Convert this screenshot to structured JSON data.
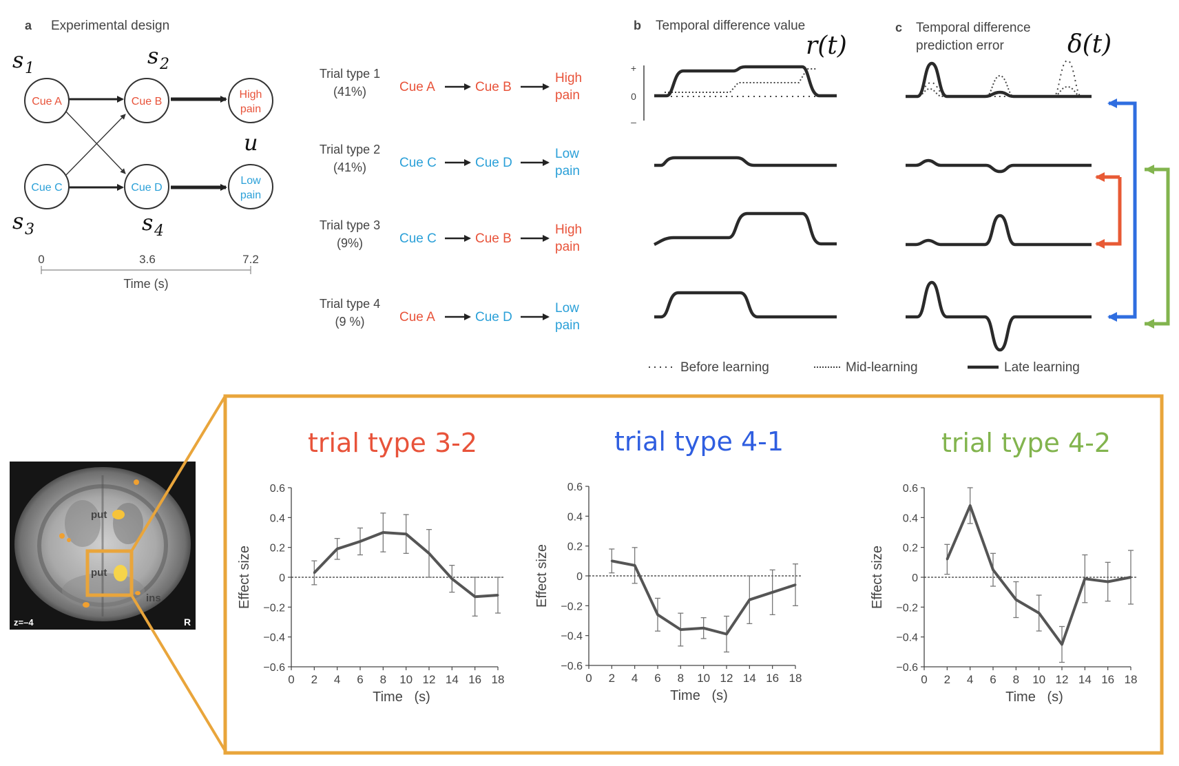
{
  "panel_a": {
    "letter": "a",
    "title": "Experimental design",
    "nodes": [
      {
        "label": "Cue A",
        "color": "#e8533a"
      },
      {
        "label": "Cue B",
        "color": "#e8533a"
      },
      {
        "label_lines": [
          "High",
          "pain"
        ],
        "color": "#e8533a"
      },
      {
        "label": "Cue C",
        "color": "#2ba0d8"
      },
      {
        "label": "Cue D",
        "color": "#2ba0d8"
      },
      {
        "label_lines": [
          "Low",
          "pain"
        ],
        "color": "#2ba0d8"
      }
    ],
    "state_labels": {
      "s1": "s",
      "s1_sub": "1",
      "s2": "s",
      "s2_sub": "2",
      "s3": "s",
      "s3_sub": "3",
      "s4": "s",
      "s4_sub": "4",
      "u": "u"
    },
    "time_axis": {
      "ticks": [
        "0",
        "3.6",
        "7.2"
      ],
      "label": "Time (s)"
    }
  },
  "trial_types": [
    {
      "name": "Trial type 1",
      "pct": "(41%)",
      "cue1": "Cue A",
      "cue1_color": "#e8533a",
      "cue2": "Cue B",
      "cue2_color": "#e8533a",
      "outcome_lines": [
        "High",
        "pain"
      ],
      "outcome_color": "#e8533a"
    },
    {
      "name": "Trial type 2",
      "pct": "(41%)",
      "cue1": "Cue C",
      "cue1_color": "#2ba0d8",
      "cue2": "Cue D",
      "cue2_color": "#2ba0d8",
      "outcome_lines": [
        "Low",
        "pain"
      ],
      "outcome_color": "#2ba0d8"
    },
    {
      "name": "Trial type 3",
      "pct": "(9%)",
      "cue1": "Cue C",
      "cue1_color": "#2ba0d8",
      "cue2": "Cue B",
      "cue2_color": "#e8533a",
      "outcome_lines": [
        "High",
        "pain"
      ],
      "outcome_color": "#e8533a"
    },
    {
      "name": "Trial type 4",
      "pct": "(9 %)",
      "cue1": "Cue A",
      "cue1_color": "#e8533a",
      "cue2": "Cue D",
      "cue2_color": "#2ba0d8",
      "outcome_lines": [
        "Low",
        "pain"
      ],
      "outcome_color": "#2ba0d8"
    }
  ],
  "panel_b": {
    "letter": "b",
    "title": "Temporal difference value",
    "symbol": "r(t)",
    "axis_ticks": [
      "+",
      "0",
      "–"
    ]
  },
  "panel_c": {
    "letter": "c",
    "title_lines": [
      "Temporal difference",
      "prediction error"
    ],
    "symbol": "δ(t)"
  },
  "legend": {
    "before": "Before learning",
    "mid": "Mid-learning",
    "late": "Late learning"
  },
  "bracket_colors": {
    "blue": "#2f6ee0",
    "red": "#e85a35",
    "green": "#82b44e"
  },
  "brain": {
    "labels": [
      "put",
      "put",
      "ins"
    ],
    "slice": "z=–4",
    "side": "R"
  },
  "frame_color": "#e9a53b",
  "chart_data": [
    {
      "type": "line",
      "title": "trial type 3-2",
      "title_color": "#e8533a",
      "xlabel": "Time   (s)",
      "ylabel": "Effect size",
      "x": [
        2,
        4,
        6,
        8,
        10,
        12,
        14,
        16,
        18
      ],
      "y": [
        0.03,
        0.19,
        0.24,
        0.3,
        0.29,
        0.16,
        -0.01,
        -0.13,
        -0.12
      ],
      "err": [
        0.08,
        0.07,
        0.09,
        0.13,
        0.13,
        0.16,
        0.09,
        0.13,
        0.12
      ],
      "xticks": [
        "0",
        "2",
        "4",
        "6",
        "8",
        "10",
        "12",
        "14",
        "16",
        "18"
      ],
      "yticks": [
        "0.6",
        "0.4",
        "0.2",
        "0",
        "−0.2",
        "−0.4",
        "−0.6"
      ],
      "xlim": [
        0,
        18
      ],
      "ylim": [
        -0.6,
        0.6
      ],
      "line_color": "#555555"
    },
    {
      "type": "line",
      "title": "trial type 4-1",
      "title_color": "#2f5ee0",
      "xlabel": "Time   (s)",
      "ylabel": "Effect size",
      "x": [
        2,
        4,
        6,
        8,
        10,
        12,
        14,
        16,
        18
      ],
      "y": [
        0.1,
        0.07,
        -0.26,
        -0.36,
        -0.35,
        -0.39,
        -0.16,
        -0.11,
        -0.06
      ],
      "err": [
        0.08,
        0.12,
        0.11,
        0.11,
        0.07,
        0.12,
        0.16,
        0.15,
        0.14
      ],
      "xticks": [
        "0",
        "2",
        "4",
        "6",
        "8",
        "10",
        "12",
        "14",
        "16",
        "18"
      ],
      "yticks": [
        "0.6",
        "0.4",
        "0.2",
        "0",
        "−0.2",
        "−0.4",
        "−0.6"
      ],
      "xlim": [
        0,
        18
      ],
      "ylim": [
        -0.6,
        0.6
      ],
      "line_color": "#555555"
    },
    {
      "type": "line",
      "title": "trial type 4-2",
      "title_color": "#82b44e",
      "xlabel": "Time   (s)",
      "ylabel": "Effect size",
      "x": [
        2,
        4,
        6,
        8,
        10,
        12,
        14,
        16,
        18
      ],
      "y": [
        0.12,
        0.48,
        0.05,
        -0.15,
        -0.24,
        -0.45,
        -0.01,
        -0.03,
        0.0
      ],
      "err": [
        0.1,
        0.12,
        0.11,
        0.12,
        0.12,
        0.12,
        0.16,
        0.13,
        0.18
      ],
      "xticks": [
        "0",
        "2",
        "4",
        "6",
        "8",
        "10",
        "12",
        "14",
        "16",
        "18"
      ],
      "yticks": [
        "0.6",
        "0.4",
        "0.2",
        "0",
        "−0.2",
        "−0.4",
        "−0.6"
      ],
      "xlim": [
        0,
        18
      ],
      "ylim": [
        -0.6,
        0.6
      ],
      "line_color": "#555555"
    }
  ]
}
